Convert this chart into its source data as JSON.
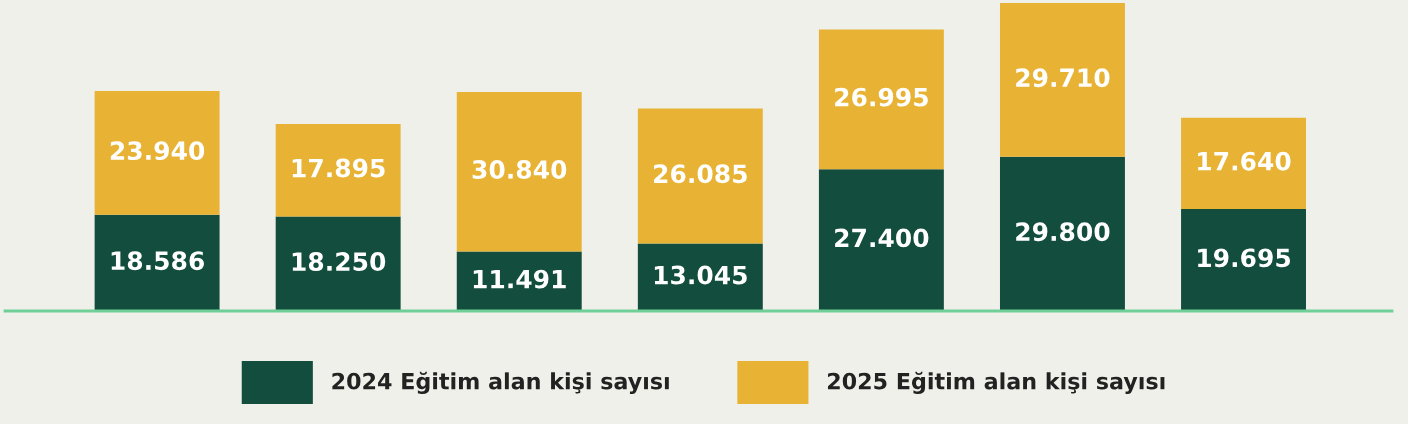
{
  "chart_data": {
    "type": "bar",
    "stacked": true,
    "categories": [
      null,
      null,
      null,
      null,
      null,
      null,
      null
    ],
    "series": [
      {
        "name": "2024 Eğitim alan kişi sayısı",
        "color": "#134d3d",
        "values": [
          18586,
          18250,
          11491,
          13045,
          27400,
          29800,
          19695
        ],
        "value_labels": [
          "18.586",
          "18.250",
          "11.491",
          "13.045",
          "27.400",
          "29.800",
          "19.695"
        ]
      },
      {
        "name": "2025 Eğitim alan kişi sayısı",
        "color": "#e8b334",
        "values": [
          23940,
          17895,
          30840,
          26085,
          26995,
          29710,
          17640
        ],
        "value_labels": [
          "23.940",
          "17.895",
          "30.840",
          "26.085",
          "26.995",
          "29.710",
          "17.640"
        ]
      }
    ],
    "legend": "bottom"
  }
}
